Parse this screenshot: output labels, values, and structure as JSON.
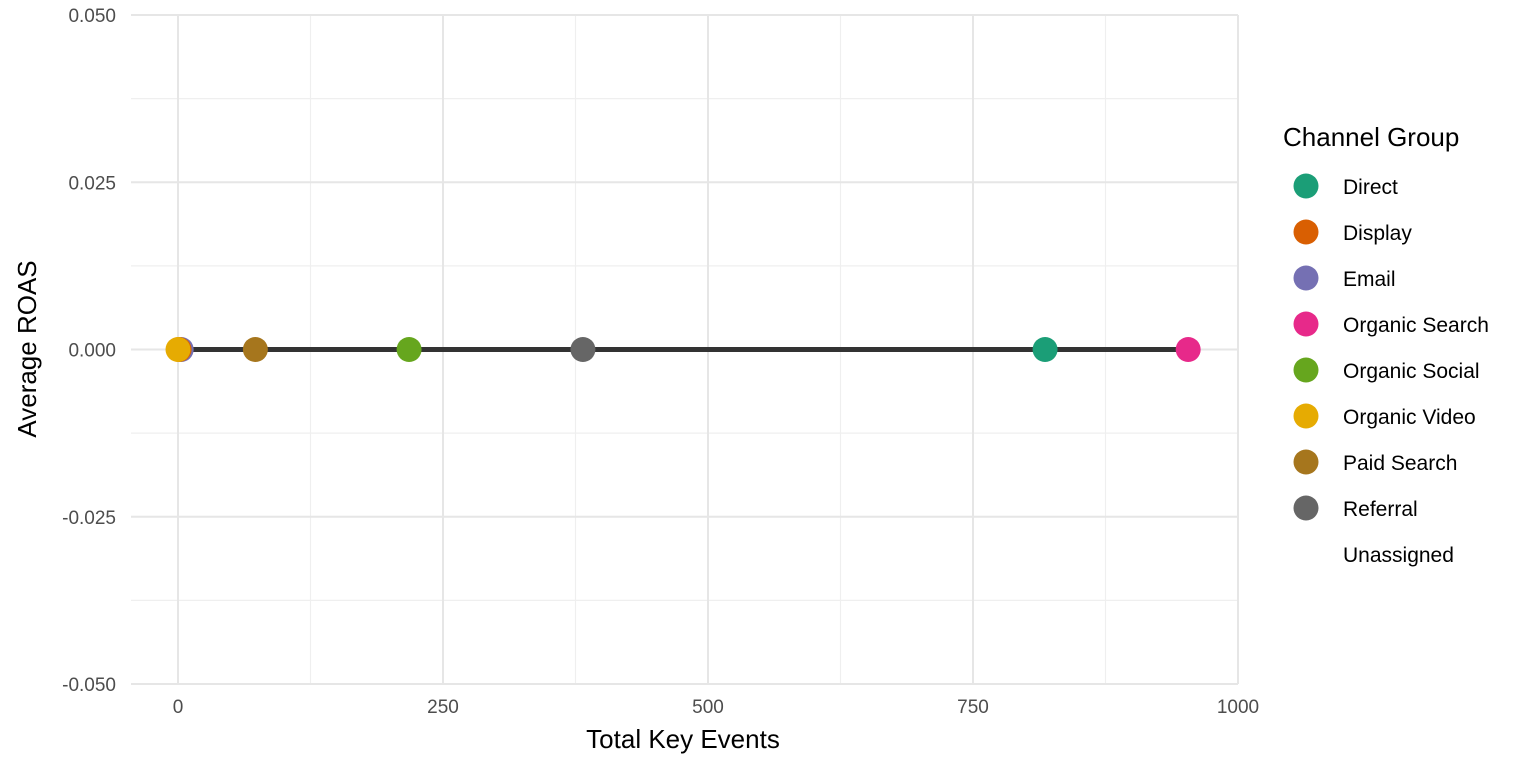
{
  "chart_data": {
    "type": "scatter",
    "title": "",
    "xlabel": "Total Key Events",
    "ylabel": "Average ROAS",
    "xlim": [
      -45,
      1000
    ],
    "ylim": [
      -0.05,
      0.05
    ],
    "x_ticks": [
      0,
      250,
      500,
      750,
      1000
    ],
    "x_tick_labels": [
      "0",
      "250",
      "500",
      "750",
      "1000"
    ],
    "y_ticks": [
      0.05,
      0.025,
      0.0,
      -0.025,
      -0.05
    ],
    "y_tick_labels": [
      "0.050",
      "0.025",
      "0.000",
      "-0.025",
      "-0.050"
    ],
    "grid": true,
    "legend": {
      "title": "Channel Group",
      "placement": "right",
      "entries": [
        {
          "name": "Direct",
          "color": "#1b9e77"
        },
        {
          "name": "Display",
          "color": "#d95f02"
        },
        {
          "name": "Email",
          "color": "#7570b3"
        },
        {
          "name": "Organic Search",
          "color": "#e7298a"
        },
        {
          "name": "Organic Social",
          "color": "#66a61e"
        },
        {
          "name": "Organic Video",
          "color": "#e6ab02"
        },
        {
          "name": "Paid Search",
          "color": "#a6761d"
        },
        {
          "name": "Referral",
          "color": "#666666"
        },
        {
          "name": "Unassigned",
          "color": ""
        }
      ]
    },
    "series": [
      {
        "name": "Direct",
        "x": 818,
        "y": 0.0,
        "color": "#1b9e77"
      },
      {
        "name": "Organic Search",
        "x": 953,
        "y": 0.0,
        "color": "#e7298a"
      },
      {
        "name": "Referral",
        "x": 382,
        "y": 0.0,
        "color": "#666666"
      },
      {
        "name": "Organic Social",
        "x": 218,
        "y": 0.0,
        "color": "#66a61e"
      },
      {
        "name": "Paid Search",
        "x": 73,
        "y": 0.0,
        "color": "#a6761d"
      },
      {
        "name": "Email",
        "x": 3,
        "y": 0.0,
        "color": "#7570b3"
      },
      {
        "name": "Display",
        "x": 1,
        "y": 0.0,
        "color": "#d95f02"
      },
      {
        "name": "Organic Video",
        "x": 0,
        "y": 0.0,
        "color": "#e6ab02"
      }
    ],
    "trend_line": {
      "x": [
        0,
        953
      ],
      "y": [
        0.0,
        0.0
      ],
      "color": "#333333"
    }
  }
}
